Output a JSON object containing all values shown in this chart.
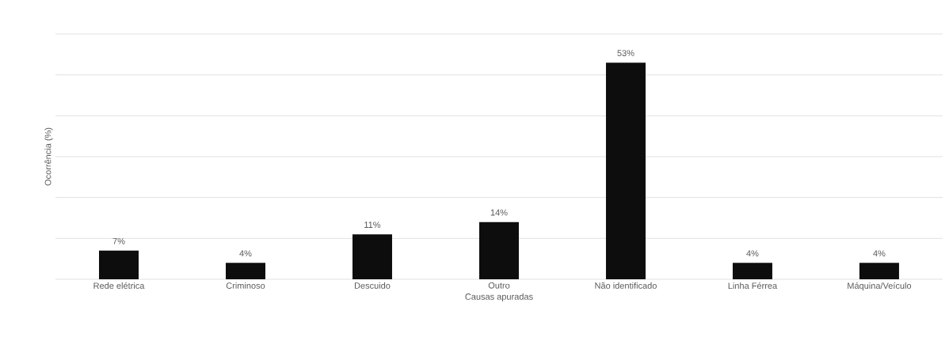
{
  "chart_data": {
    "type": "bar",
    "xlabel": "Causas apuradas",
    "ylabel": "Ocorrência (%)",
    "categories": [
      "Rede elétrica",
      "Criminoso",
      "Descuido",
      "Outro",
      "Não identificado",
      "Linha Férrea",
      "Máquina/Veículo"
    ],
    "values": [
      7,
      4,
      11,
      14,
      53,
      4,
      4
    ],
    "value_labels": [
      "7%",
      "4%",
      "11%",
      "14%",
      "53%",
      "4%",
      "4%"
    ],
    "color": "#0d0d0d",
    "ylim": [
      0,
      60
    ],
    "yticks": [
      {
        "value": 0,
        "label": null
      },
      {
        "value": 10,
        "label": null
      },
      {
        "value": 20,
        "label": null
      },
      {
        "value": 30,
        "label": null
      },
      {
        "value": 40,
        "label": null
      },
      {
        "value": 50,
        "label": null
      },
      {
        "value": 60,
        "label": null
      }
    ],
    "grid": "y",
    "tick_labels": "x"
  }
}
